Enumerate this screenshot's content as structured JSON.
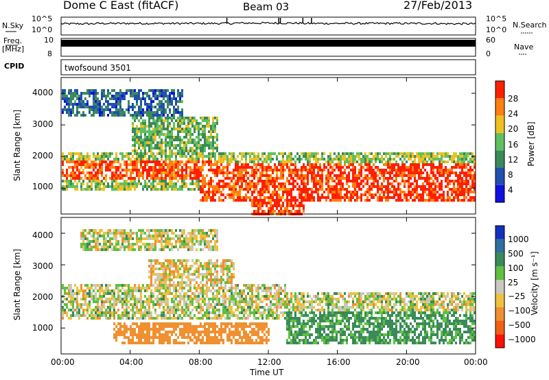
{
  "header": {
    "station": "Dome C East (fitACF)",
    "beam": "Beam 03",
    "date": "27/Feb/2013"
  },
  "top_panels": {
    "nsky_label": "N.Sky",
    "nsky_ticks": [
      "10^5",
      "10^0"
    ],
    "nsearch_label": "N.Search",
    "nsearch_ticks": [
      "10^5",
      "10^0"
    ],
    "freq_label": "Freq.",
    "freq_unit": "[MHz]",
    "freq_ticks": [
      "10",
      "8"
    ],
    "nave_label": "Nave",
    "nave_ticks": [
      "60",
      "0"
    ],
    "cpid_label": "CPID",
    "cpid_value": "twofsound 3501"
  },
  "x_axis": {
    "label": "Time UT",
    "ticks": [
      "00:00",
      "04:00",
      "08:00",
      "12:00",
      "16:00",
      "20:00",
      "00:00"
    ]
  },
  "power_panel": {
    "ylabel": "Slant Range [km]",
    "yticks": [
      "4000",
      "3000",
      "2000",
      "1000"
    ],
    "colorbar_label": "Power [dB]",
    "colorbar_ticks": [
      "28",
      "24",
      "20",
      "16",
      "12",
      "8",
      "4"
    ],
    "colors": [
      "#1010e0",
      "#2050b0",
      "#3a8a5a",
      "#60c060",
      "#f0c020",
      "#ff8010",
      "#ff2000"
    ]
  },
  "velocity_panel": {
    "ylabel": "Slant Range [km]",
    "yticks": [
      "4000",
      "3000",
      "2000",
      "1000"
    ],
    "colorbar_label": "Velocity [m s⁻¹]",
    "colorbar_ticks": [
      "1000",
      "500",
      "100",
      "25",
      "−25",
      "−100",
      "−500",
      "−1000"
    ],
    "colors": [
      "#1030c0",
      "#2f70a0",
      "#3a8a5a",
      "#60c040",
      "#c8c8c0",
      "#f0c040",
      "#f09030",
      "#f06010",
      "#ff1000"
    ]
  },
  "chart_data": [
    {
      "type": "line",
      "name": "N.Sky",
      "ylim_log10": [
        0,
        5
      ],
      "x": [
        "00:00",
        "04:00",
        "08:00",
        "12:00",
        "16:00",
        "20:00",
        "00:00"
      ],
      "values_log10": [
        3.2,
        3.3,
        3.3,
        3.4,
        3.3,
        3.3,
        3.2
      ],
      "spikes_hours": [
        9.6,
        12.6,
        12.7,
        14.0,
        14.5
      ]
    },
    {
      "type": "bar",
      "name": "Freq / Nave",
      "freq_mhz": 9.5,
      "ylim": [
        8,
        10
      ],
      "nave_range": [
        0,
        60
      ]
    },
    {
      "type": "heatmap",
      "name": "Power",
      "x_range_hours": [
        0,
        24
      ],
      "y_range_km": [
        180,
        4500
      ],
      "color_scale": [
        0,
        30
      ],
      "regions": [
        {
          "t": [
            0,
            24
          ],
          "r": [
            1000,
            2200
          ],
          "level": 16
        },
        {
          "t": [
            0,
            9
          ],
          "r": [
            1300,
            1900
          ],
          "level": 26
        },
        {
          "t": [
            8,
            13
          ],
          "r": [
            600,
            1800
          ],
          "level": 26
        },
        {
          "t": [
            13,
            24
          ],
          "r": [
            600,
            1800
          ],
          "level": 28
        },
        {
          "t": [
            0,
            7
          ],
          "r": [
            3300,
            4200
          ],
          "level": 8
        },
        {
          "t": [
            4,
            9
          ],
          "r": [
            2100,
            3300
          ],
          "level": 14
        },
        {
          "t": [
            11,
            14
          ],
          "r": [
            180,
            600
          ],
          "level": 28
        }
      ]
    },
    {
      "type": "heatmap",
      "name": "Velocity",
      "x_range_hours": [
        0,
        24
      ],
      "y_range_km": [
        180,
        4500
      ],
      "color_scale": [
        -1000,
        1000
      ],
      "regions": [
        {
          "t": [
            0,
            13
          ],
          "r": [
            1300,
            2400
          ],
          "velocity": 0
        },
        {
          "t": [
            13,
            24
          ],
          "r": [
            1300,
            2200
          ],
          "velocity": 0
        },
        {
          "t": [
            3,
            12
          ],
          "r": [
            500,
            1200
          ],
          "velocity": -300
        },
        {
          "t": [
            13,
            24
          ],
          "r": [
            500,
            1600
          ],
          "velocity": 150
        },
        {
          "t": [
            1,
            9
          ],
          "r": [
            3500,
            4200
          ],
          "velocity": 0
        },
        {
          "t": [
            5,
            10
          ],
          "r": [
            2300,
            3200
          ],
          "velocity": -50
        }
      ]
    }
  ]
}
